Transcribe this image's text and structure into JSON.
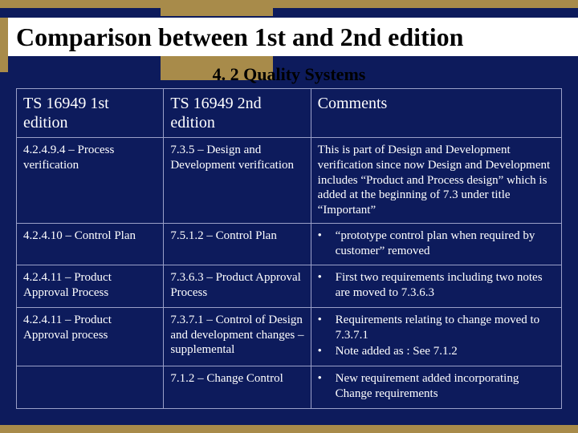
{
  "colors": {
    "background": "#0d1b5c",
    "accent_gold": "#a88b4a",
    "title_bg": "#ffffff",
    "title_text": "#000000",
    "table_border": "#9aa0c8",
    "text": "#ffffff"
  },
  "title": "Comparison between 1st and 2nd edition",
  "subtitle": "4. 2 Quality Systems",
  "table": {
    "headers": {
      "col1": "TS 16949 1st edition",
      "col2": "TS 16949  2nd edition",
      "col3": "Comments"
    },
    "rows": [
      {
        "col1": "4.2.4.9.4 – Process verification",
        "col2": "7.3.5 – Design and Development verification",
        "comments_text": "This is part of Design and Development verification since now Design and Development includes “Product and Process design” which is added at the beginning of 7.3 under title “Important”",
        "comments_bullets": []
      },
      {
        "col1": "4.2.4.10 – Control Plan",
        "col2": "7.5.1.2 – Control Plan",
        "comments_text": "",
        "comments_bullets": [
          "“prototype control plan when required by customer” removed"
        ]
      },
      {
        "col1": "4.2.4.11 – Product Approval Process",
        "col2": "7.3.6.3 – Product Approval Process",
        "comments_text": "",
        "comments_bullets": [
          "First two requirements including two notes are moved to 7.3.6.3"
        ]
      },
      {
        "col1": "4.2.4.11 – Product Approval process",
        "col2": "7.3.7.1 – Control of Design and development changes – supplemental",
        "comments_text": "",
        "comments_bullets": [
          "Requirements relating to change moved to 7.3.7.1",
          "Note added as : See 7.1.2"
        ]
      },
      {
        "col1": "",
        "col2": "7.1.2 – Change Control",
        "comments_text": "",
        "comments_bullets": [
          "New requirement added incorporating Change requirements"
        ]
      }
    ]
  }
}
